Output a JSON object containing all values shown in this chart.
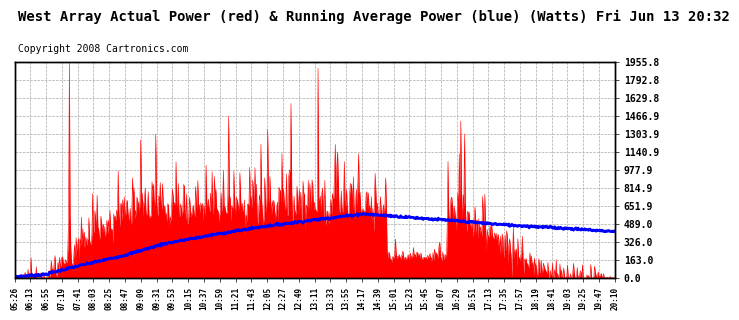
{
  "title": "West Array Actual Power (red) & Running Average Power (blue) (Watts) Fri Jun 13 20:32",
  "copyright": "Copyright 2008 Cartronics.com",
  "ylabel_right_ticks": [
    0.0,
    163.0,
    326.0,
    489.0,
    651.9,
    814.9,
    977.9,
    1140.9,
    1303.9,
    1466.9,
    1629.8,
    1792.8,
    1955.8
  ],
  "x_tick_labels": [
    "05:26",
    "06:13",
    "06:55",
    "07:19",
    "07:41",
    "08:03",
    "08:25",
    "08:47",
    "09:09",
    "09:31",
    "09:53",
    "10:15",
    "10:37",
    "10:59",
    "11:21",
    "11:43",
    "12:05",
    "12:27",
    "12:49",
    "13:11",
    "13:33",
    "13:55",
    "14:17",
    "14:39",
    "15:01",
    "15:23",
    "15:45",
    "16:07",
    "16:29",
    "16:51",
    "17:13",
    "17:35",
    "17:57",
    "18:19",
    "18:41",
    "19:03",
    "19:25",
    "19:47",
    "20:10"
  ],
  "ymax": 1955.8,
  "ymin": 0.0,
  "actual_color": "#FF0000",
  "average_color": "#0000FF",
  "bg_color": "#FFFFFF",
  "grid_color": "#AAAAAA",
  "title_fontsize": 10,
  "copyright_fontsize": 7,
  "n_ticks": 39
}
